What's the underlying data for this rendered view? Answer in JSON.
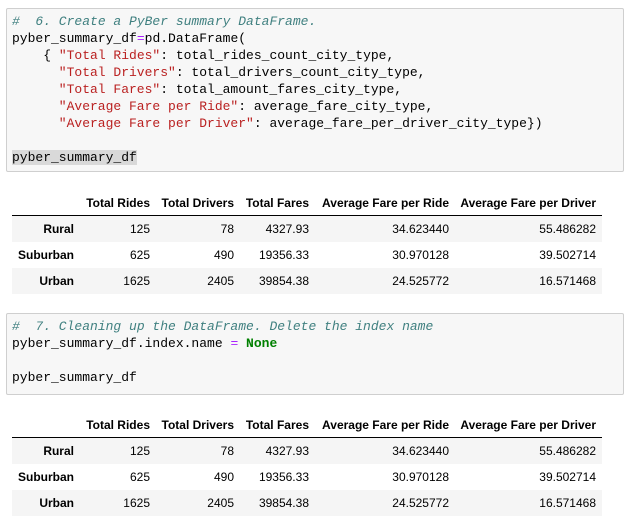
{
  "cells": [
    {
      "code": [
        [
          "#  6. Create a PyBer summary DataFrame."
        ],
        [
          "pyber_summary_df",
          "=",
          "pd.DataFrame("
        ],
        [
          "{ ",
          "\"Total Rides\"",
          ": total_rides_count_city_type,"
        ],
        [
          "\"Total Drivers\"",
          ": total_drivers_count_city_type,"
        ],
        [
          "\"Total Fares\"",
          ": total_amount_fares_city_type,"
        ],
        [
          "\"Average Fare per Ride\"",
          ": average_fare_city_type,"
        ],
        [
          "\"Average Fare per Driver\"",
          ": average_fare_per_driver_city_type})"
        ],
        [
          "pyber_summary_df"
        ]
      ],
      "table": {
        "columns": [
          "Total Rides",
          "Total Drivers",
          "Total Fares",
          "Average Fare per Ride",
          "Average Fare per Driver"
        ],
        "rows": [
          [
            "Rural",
            "125",
            "78",
            "4327.93",
            "34.623440",
            "55.486282"
          ],
          [
            "Suburban",
            "625",
            "490",
            "19356.33",
            "30.970128",
            "39.502714"
          ],
          [
            "Urban",
            "1625",
            "2405",
            "39854.38",
            "24.525772",
            "16.571468"
          ]
        ]
      }
    },
    {
      "code": [
        [
          "#  7. Cleaning up the DataFrame. Delete the index name"
        ],
        [
          "pyber_summary_df.index.name ",
          "=",
          "None"
        ],
        [
          "pyber_summary_df"
        ]
      ],
      "table": {
        "columns": [
          "Total Rides",
          "Total Drivers",
          "Total Fares",
          "Average Fare per Ride",
          "Average Fare per Driver"
        ],
        "rows": [
          [
            "Rural",
            "125",
            "78",
            "4327.93",
            "34.623440",
            "55.486282"
          ],
          [
            "Suburban",
            "625",
            "490",
            "19356.33",
            "30.970128",
            "39.502714"
          ],
          [
            "Urban",
            "1625",
            "2405",
            "39854.38",
            "24.525772",
            "16.571468"
          ]
        ]
      }
    }
  ]
}
